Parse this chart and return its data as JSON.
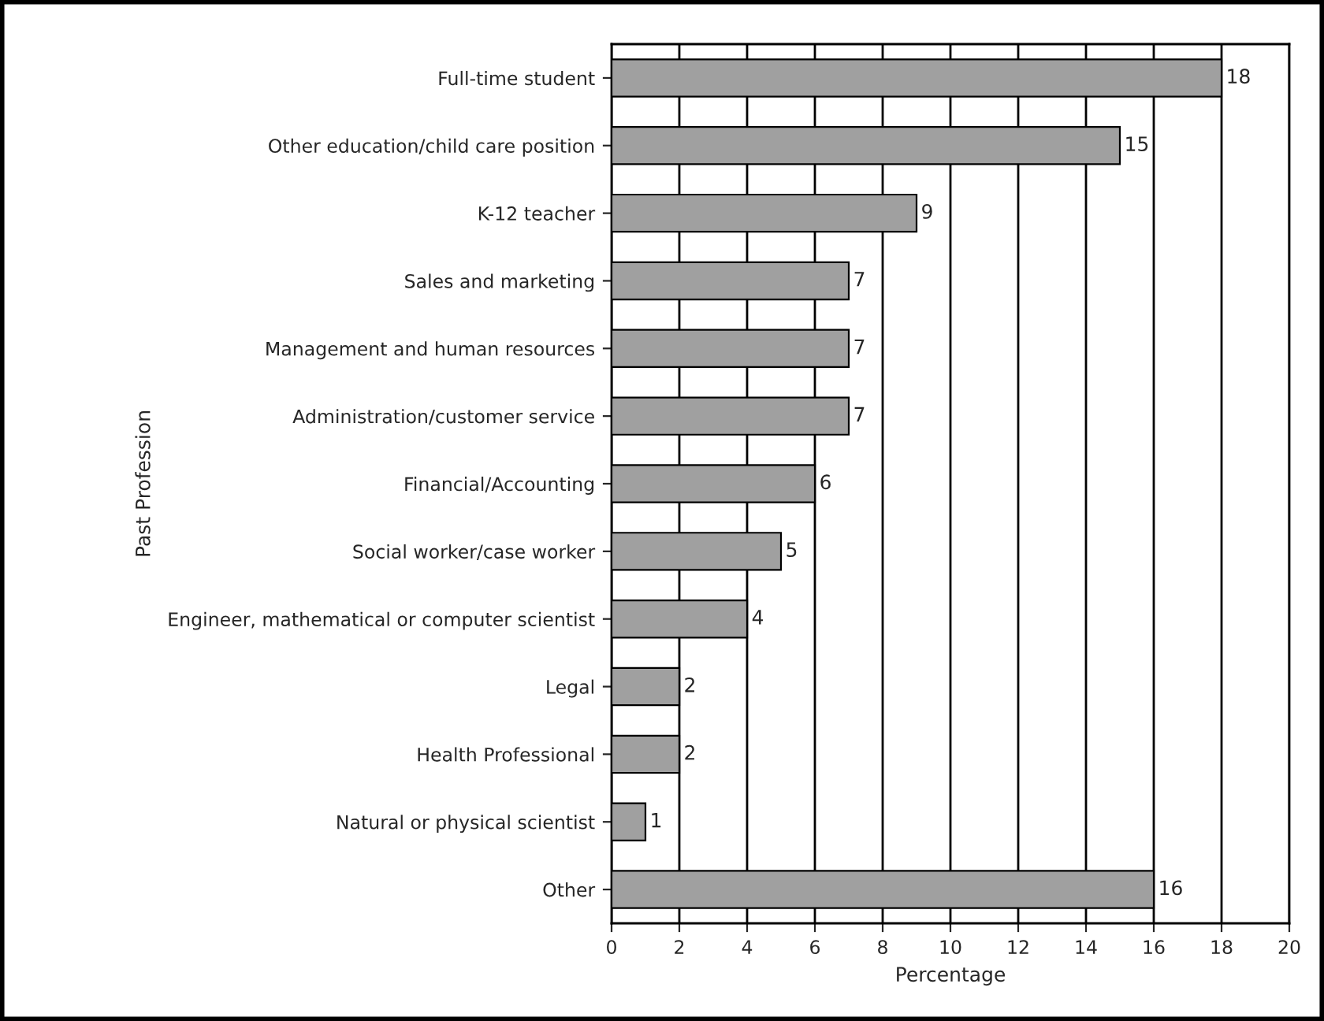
{
  "chart_data": {
    "type": "bar",
    "orientation": "horizontal",
    "xlabel": "Percentage",
    "ylabel": "Past Profession",
    "categories": [
      "Full-time student",
      "Other education/child care position",
      "K-12 teacher",
      "Sales and marketing",
      "Management and human resources",
      "Administration/customer service",
      "Financial/Accounting",
      "Social worker/case worker",
      "Engineer, mathematical or computer scientist",
      "Legal",
      "Health Professional",
      "Natural or physical scientist",
      "Other"
    ],
    "values": [
      18,
      15,
      9,
      7,
      7,
      7,
      6,
      5,
      4,
      2,
      2,
      1,
      16
    ],
    "color": "#a0a0a0",
    "xlim": [
      0,
      20
    ],
    "xticks": [
      0,
      2,
      4,
      6,
      8,
      10,
      12,
      14,
      16,
      18,
      20
    ],
    "grid": "x",
    "data_labels": true
  }
}
